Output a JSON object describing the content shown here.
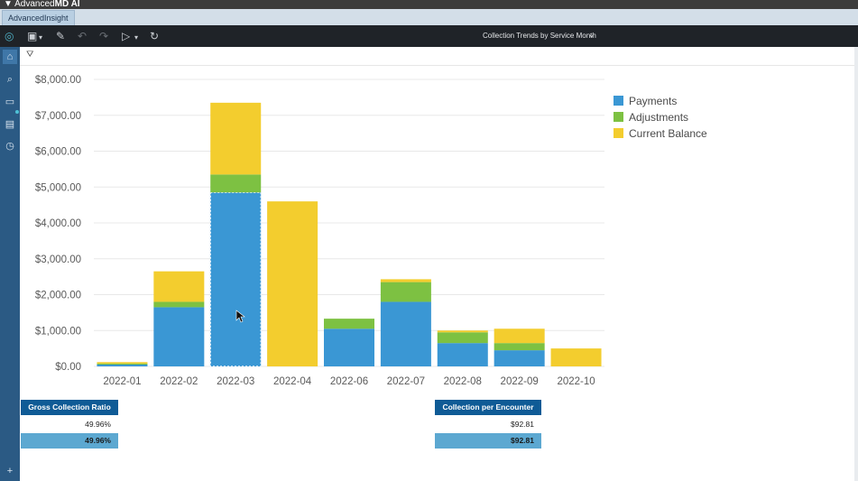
{
  "app": {
    "brand_prefix": "Advanced",
    "brand_md": "MD",
    "brand_suffix": " AI",
    "tab_label": "AdvancedInsight"
  },
  "toolbar": {
    "report_title": "Collection Trends by Service Month"
  },
  "kpis": [
    {
      "title": "Gross Collection Ratio",
      "value": "49.96%",
      "bar_value": "49.96%"
    },
    {
      "title": "Collection per Encounter",
      "value": "$92.81",
      "bar_value": "$92.81"
    }
  ],
  "colors": {
    "payments": "#3a97d4",
    "adjustments": "#7dc142",
    "current_balance": "#f3cd2e"
  },
  "chart_data": {
    "type": "bar",
    "stacked": true,
    "categories": [
      "2022-01",
      "2022-02",
      "2022-03",
      "2022-04",
      "2022-06",
      "2022-07",
      "2022-08",
      "2022-09",
      "2022-10"
    ],
    "series": [
      {
        "name": "Payments",
        "color": "#3a97d4",
        "values": [
          50,
          1650,
          4850,
          0,
          1050,
          1800,
          650,
          450,
          0
        ]
      },
      {
        "name": "Adjustments",
        "color": "#7dc142",
        "values": [
          30,
          150,
          500,
          0,
          280,
          550,
          300,
          200,
          0
        ]
      },
      {
        "name": "Current Balance",
        "color": "#f3cd2e",
        "values": [
          40,
          850,
          2000,
          4600,
          0,
          80,
          50,
          400,
          500
        ]
      }
    ],
    "ylim": [
      0,
      8000
    ],
    "yticks": [
      0,
      1000,
      2000,
      3000,
      4000,
      5000,
      6000,
      7000,
      8000
    ],
    "ytick_labels": [
      "$0.00",
      "$1,000.00",
      "$2,000.00",
      "$3,000.00",
      "$4,000.00",
      "$5,000.00",
      "$6,000.00",
      "$7,000.00",
      "$8,000.00"
    ],
    "grid": true,
    "legend": "top-right",
    "selected_category": "2022-03",
    "selected_series": "Payments"
  }
}
